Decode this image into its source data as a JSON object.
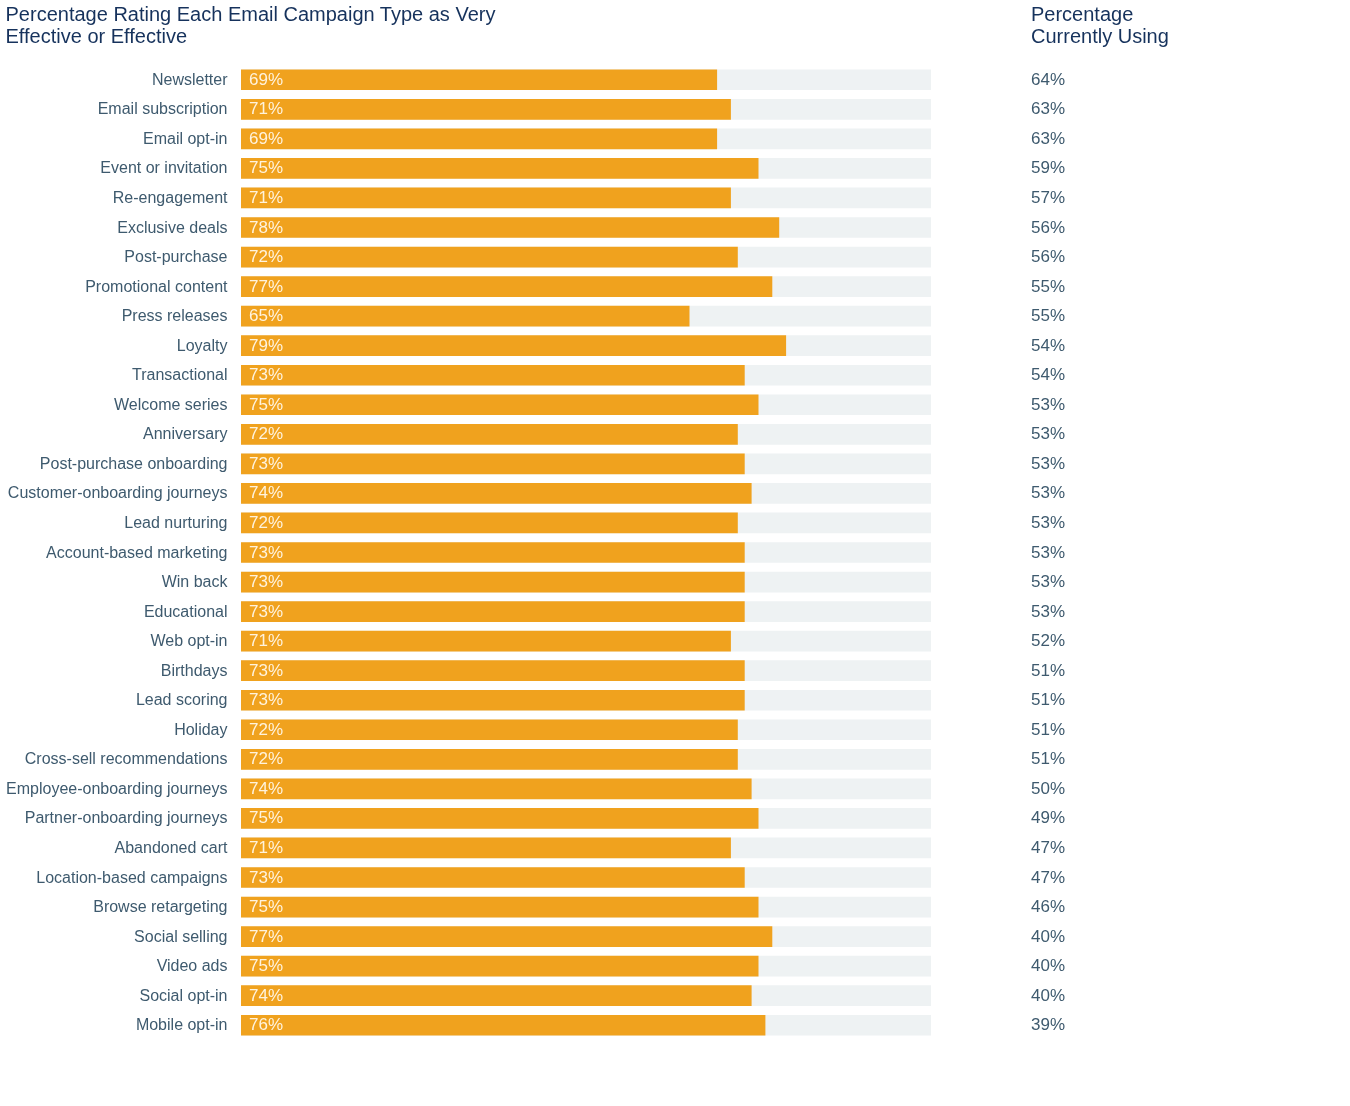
{
  "chart_data": [
    {
      "type": "bar",
      "orientation": "horizontal",
      "title": "Percentage Rating Each Email Campaign Type as Very Effective or Effective",
      "categories": [
        "Newsletter",
        "Email subscription",
        "Email opt-in",
        "Event or invitation",
        "Re-engagement",
        "Exclusive deals",
        "Post-purchase",
        "Promotional content",
        "Press releases",
        "Loyalty",
        "Transactional",
        "Welcome series",
        "Anniversary",
        "Post-purchase onboarding",
        "Customer-onboarding journeys",
        "Lead nurturing",
        "Account-based marketing",
        "Win back",
        "Educational",
        "Web opt-in",
        "Birthdays",
        "Lead scoring",
        "Holiday",
        "Cross-sell recommendations",
        "Employee-onboarding journeys",
        "Partner-onboarding journeys",
        "Abandoned cart",
        "Location-based campaigns",
        "Browse retargeting",
        "Social selling",
        "Video ads",
        "Social opt-in",
        "Mobile opt-in"
      ],
      "values": [
        69,
        71,
        69,
        75,
        71,
        78,
        72,
        77,
        65,
        79,
        73,
        75,
        72,
        73,
        74,
        72,
        73,
        73,
        73,
        71,
        73,
        73,
        72,
        72,
        74,
        75,
        71,
        73,
        75,
        77,
        75,
        74,
        76
      ],
      "value_labels": [
        "69%",
        "71%",
        "69%",
        "75%",
        "71%",
        "78%",
        "72%",
        "77%",
        "65%",
        "79%",
        "73%",
        "75%",
        "72%",
        "73%",
        "74%",
        "72%",
        "73%",
        "73%",
        "73%",
        "71%",
        "73%",
        "73%",
        "72%",
        "72%",
        "74%",
        "75%",
        "71%",
        "73%",
        "75%",
        "77%",
        "75%",
        "74%",
        "76%"
      ],
      "color": "#f0a21e",
      "xlim": [
        0,
        100
      ],
      "tick_labels": "y",
      "grid": false
    },
    {
      "type": "other",
      "title": "Percentage Currently Using",
      "values": [
        64,
        63,
        63,
        59,
        57,
        56,
        56,
        55,
        55,
        54,
        54,
        53,
        53,
        53,
        53,
        53,
        53,
        53,
        53,
        52,
        51,
        51,
        51,
        51,
        50,
        49,
        47,
        47,
        46,
        40,
        40,
        40,
        39
      ],
      "value_labels": [
        "64%",
        "63%",
        "63%",
        "59%",
        "57%",
        "56%",
        "56%",
        "55%",
        "55%",
        "54%",
        "54%",
        "53%",
        "53%",
        "53%",
        "53%",
        "53%",
        "53%",
        "53%",
        "53%",
        "52%",
        "51%",
        "51%",
        "51%",
        "51%",
        "50%",
        "49%",
        "47%",
        "47%",
        "46%",
        "40%",
        "40%",
        "40%",
        "39%"
      ]
    }
  ]
}
